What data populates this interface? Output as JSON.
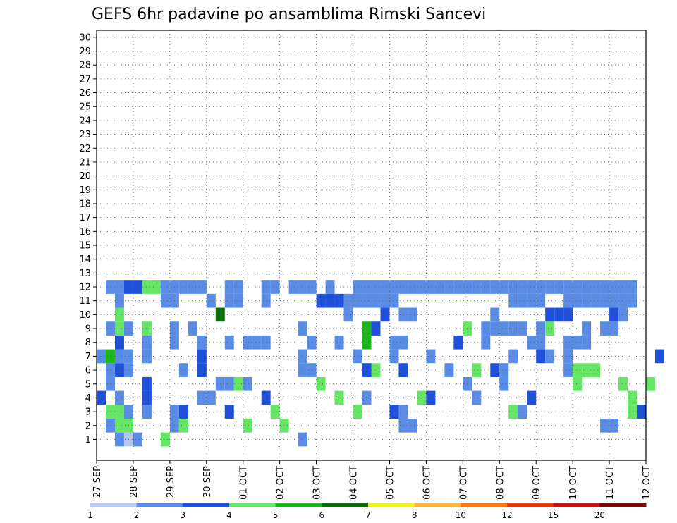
{
  "chart_data": {
    "type": "heatmap",
    "title": "GEFS 6hr padavine po ansamblima Rimski Sancevi",
    "x_labels": [
      "27 SEP",
      "28 SEP",
      "29 SEP",
      "30 SEP",
      "01 OCT",
      "02 OCT",
      "03 OCT",
      "04 OCT",
      "05 OCT",
      "06 OCT",
      "07 OCT",
      "08 OCT",
      "09 OCT",
      "10 OCT",
      "11 OCT",
      "12 OCT"
    ],
    "y_labels": [
      "1",
      "2",
      "3",
      "4",
      "5",
      "6",
      "7",
      "8",
      "9",
      "10",
      "11",
      "12",
      "13",
      "14",
      "15",
      "16",
      "17",
      "18",
      "19",
      "20",
      "21",
      "22",
      "23",
      "24",
      "25",
      "26",
      "27",
      "28",
      "29",
      "30"
    ],
    "ylim": [
      0,
      30
    ],
    "x_steps_6h": 60,
    "grid": true,
    "colorbar": {
      "thresholds": [
        "1",
        "2",
        "3",
        "4",
        "5",
        "6",
        "7",
        "8",
        "10",
        "12",
        "15",
        "20"
      ],
      "colors": [
        "#b4c8f0",
        "#5a8ce6",
        "#1e50dc",
        "#64e664",
        "#1eb41e",
        "#0a6e0a",
        "#f0f01e",
        "#ffb43c",
        "#ff7814",
        "#e63c14",
        "#c81414",
        "#780a0a"
      ]
    },
    "cells": [
      [
        2,
        0,
        1
      ],
      [
        3,
        0,
        0
      ],
      [
        4,
        0,
        1
      ],
      [
        7,
        0,
        3
      ],
      [
        22,
        0,
        1
      ],
      [
        1,
        1,
        1
      ],
      [
        2,
        1,
        3
      ],
      [
        3,
        1,
        3
      ],
      [
        8,
        1,
        1
      ],
      [
        9,
        1,
        3
      ],
      [
        16,
        1,
        3
      ],
      [
        20,
        1,
        3
      ],
      [
        33,
        1,
        1
      ],
      [
        34,
        1,
        1
      ],
      [
        55,
        1,
        1
      ],
      [
        56,
        1,
        1
      ],
      [
        1,
        2,
        3
      ],
      [
        2,
        2,
        3
      ],
      [
        3,
        2,
        1
      ],
      [
        5,
        2,
        1
      ],
      [
        8,
        2,
        1
      ],
      [
        9,
        2,
        2
      ],
      [
        14,
        2,
        2
      ],
      [
        19,
        2,
        3
      ],
      [
        28,
        2,
        3
      ],
      [
        32,
        2,
        2
      ],
      [
        33,
        2,
        1
      ],
      [
        45,
        2,
        3
      ],
      [
        46,
        2,
        1
      ],
      [
        58,
        2,
        3
      ],
      [
        59,
        2,
        2
      ],
      [
        0,
        3,
        2
      ],
      [
        2,
        3,
        1
      ],
      [
        5,
        3,
        2
      ],
      [
        11,
        3,
        1
      ],
      [
        12,
        3,
        1
      ],
      [
        18,
        3,
        2
      ],
      [
        26,
        3,
        3
      ],
      [
        29,
        3,
        1
      ],
      [
        35,
        3,
        3
      ],
      [
        36,
        3,
        2
      ],
      [
        41,
        3,
        1
      ],
      [
        47,
        3,
        2
      ],
      [
        58,
        3,
        3
      ],
      [
        1,
        4,
        1
      ],
      [
        5,
        4,
        2
      ],
      [
        13,
        4,
        1
      ],
      [
        14,
        4,
        1
      ],
      [
        15,
        4,
        3
      ],
      [
        16,
        4,
        1
      ],
      [
        24,
        4,
        3
      ],
      [
        40,
        4,
        1
      ],
      [
        44,
        4,
        1
      ],
      [
        52,
        4,
        3
      ],
      [
        57,
        4,
        3
      ],
      [
        60,
        4,
        3
      ],
      [
        1,
        5,
        1
      ],
      [
        2,
        5,
        2
      ],
      [
        3,
        5,
        1
      ],
      [
        9,
        5,
        1
      ],
      [
        11,
        5,
        2
      ],
      [
        22,
        5,
        1
      ],
      [
        23,
        5,
        1
      ],
      [
        29,
        5,
        2
      ],
      [
        30,
        5,
        3
      ],
      [
        33,
        5,
        2
      ],
      [
        38,
        5,
        1
      ],
      [
        41,
        5,
        3
      ],
      [
        43,
        5,
        2
      ],
      [
        44,
        5,
        1
      ],
      [
        51,
        5,
        1
      ],
      [
        52,
        5,
        3
      ],
      [
        53,
        5,
        3
      ],
      [
        54,
        5,
        3
      ],
      [
        0,
        6,
        1
      ],
      [
        1,
        6,
        4
      ],
      [
        2,
        6,
        1
      ],
      [
        3,
        6,
        1
      ],
      [
        5,
        6,
        1
      ],
      [
        11,
        6,
        2
      ],
      [
        22,
        6,
        1
      ],
      [
        28,
        6,
        1
      ],
      [
        32,
        6,
        1
      ],
      [
        36,
        6,
        1
      ],
      [
        45,
        6,
        1
      ],
      [
        48,
        6,
        2
      ],
      [
        49,
        6,
        1
      ],
      [
        51,
        6,
        1
      ],
      [
        61,
        6,
        2
      ],
      [
        2,
        7,
        2
      ],
      [
        5,
        7,
        1
      ],
      [
        8,
        7,
        1
      ],
      [
        11,
        7,
        1
      ],
      [
        14,
        7,
        1
      ],
      [
        16,
        7,
        1
      ],
      [
        17,
        7,
        1
      ],
      [
        18,
        7,
        1
      ],
      [
        23,
        7,
        1
      ],
      [
        26,
        7,
        1
      ],
      [
        29,
        7,
        4
      ],
      [
        32,
        7,
        1
      ],
      [
        33,
        7,
        1
      ],
      [
        39,
        7,
        2
      ],
      [
        42,
        7,
        1
      ],
      [
        47,
        7,
        1
      ],
      [
        48,
        7,
        1
      ],
      [
        51,
        7,
        1
      ],
      [
        52,
        7,
        1
      ],
      [
        53,
        7,
        1
      ],
      [
        1,
        8,
        1
      ],
      [
        2,
        8,
        3
      ],
      [
        3,
        8,
        1
      ],
      [
        5,
        8,
        3
      ],
      [
        8,
        8,
        1
      ],
      [
        10,
        8,
        1
      ],
      [
        22,
        8,
        1
      ],
      [
        29,
        8,
        4
      ],
      [
        30,
        8,
        2
      ],
      [
        40,
        8,
        3
      ],
      [
        42,
        8,
        1
      ],
      [
        43,
        8,
        1
      ],
      [
        44,
        8,
        1
      ],
      [
        45,
        8,
        1
      ],
      [
        46,
        8,
        1
      ],
      [
        48,
        8,
        1
      ],
      [
        49,
        8,
        3
      ],
      [
        53,
        8,
        1
      ],
      [
        55,
        8,
        1
      ],
      [
        56,
        8,
        1
      ],
      [
        2,
        9,
        3
      ],
      [
        13,
        9,
        5
      ],
      [
        27,
        9,
        1
      ],
      [
        31,
        9,
        2
      ],
      [
        33,
        9,
        1
      ],
      [
        34,
        9,
        1
      ],
      [
        43,
        9,
        1
      ],
      [
        49,
        9,
        2
      ],
      [
        50,
        9,
        2
      ],
      [
        51,
        9,
        2
      ],
      [
        56,
        9,
        2
      ],
      [
        57,
        9,
        1
      ],
      [
        2,
        10,
        1
      ],
      [
        7,
        10,
        1
      ],
      [
        8,
        10,
        1
      ],
      [
        12,
        10,
        1
      ],
      [
        14,
        10,
        1
      ],
      [
        15,
        10,
        1
      ],
      [
        18,
        10,
        1
      ],
      [
        24,
        10,
        2
      ],
      [
        25,
        10,
        2
      ],
      [
        26,
        10,
        2
      ],
      [
        27,
        10,
        1
      ],
      [
        28,
        10,
        1
      ],
      [
        29,
        10,
        1
      ],
      [
        30,
        10,
        1
      ],
      [
        31,
        10,
        1
      ],
      [
        32,
        10,
        1
      ],
      [
        45,
        10,
        1
      ],
      [
        46,
        10,
        1
      ],
      [
        47,
        10,
        1
      ],
      [
        48,
        10,
        1
      ],
      [
        51,
        10,
        1
      ],
      [
        52,
        10,
        1
      ],
      [
        53,
        10,
        1
      ],
      [
        54,
        10,
        1
      ],
      [
        55,
        10,
        1
      ],
      [
        56,
        10,
        1
      ],
      [
        57,
        10,
        1
      ],
      [
        58,
        10,
        1
      ],
      [
        1,
        11,
        1
      ],
      [
        2,
        11,
        1
      ],
      [
        3,
        11,
        2
      ],
      [
        4,
        11,
        2
      ],
      [
        5,
        11,
        3
      ],
      [
        6,
        11,
        3
      ],
      [
        7,
        11,
        1
      ],
      [
        8,
        11,
        1
      ],
      [
        9,
        11,
        1
      ],
      [
        10,
        11,
        1
      ],
      [
        11,
        11,
        1
      ],
      [
        14,
        11,
        1
      ],
      [
        15,
        11,
        1
      ],
      [
        18,
        11,
        1
      ],
      [
        19,
        11,
        1
      ],
      [
        21,
        11,
        1
      ],
      [
        22,
        11,
        1
      ],
      [
        23,
        11,
        1
      ],
      [
        25,
        11,
        1
      ],
      [
        28,
        11,
        1
      ],
      [
        29,
        11,
        1
      ],
      [
        30,
        11,
        1
      ],
      [
        31,
        11,
        1
      ],
      [
        32,
        11,
        1
      ],
      [
        33,
        11,
        1
      ],
      [
        34,
        11,
        1
      ],
      [
        35,
        11,
        1
      ],
      [
        36,
        11,
        1
      ],
      [
        37,
        11,
        1
      ],
      [
        38,
        11,
        1
      ],
      [
        39,
        11,
        1
      ],
      [
        40,
        11,
        1
      ],
      [
        41,
        11,
        1
      ],
      [
        42,
        11,
        1
      ],
      [
        43,
        11,
        1
      ],
      [
        44,
        11,
        1
      ],
      [
        45,
        11,
        1
      ],
      [
        46,
        11,
        1
      ],
      [
        47,
        11,
        1
      ],
      [
        48,
        11,
        1
      ],
      [
        49,
        11,
        1
      ],
      [
        50,
        11,
        1
      ],
      [
        51,
        11,
        1
      ],
      [
        52,
        11,
        1
      ],
      [
        53,
        11,
        1
      ],
      [
        54,
        11,
        1
      ],
      [
        55,
        11,
        1
      ],
      [
        56,
        11,
        1
      ],
      [
        57,
        11,
        1
      ],
      [
        58,
        11,
        1
      ]
    ]
  }
}
